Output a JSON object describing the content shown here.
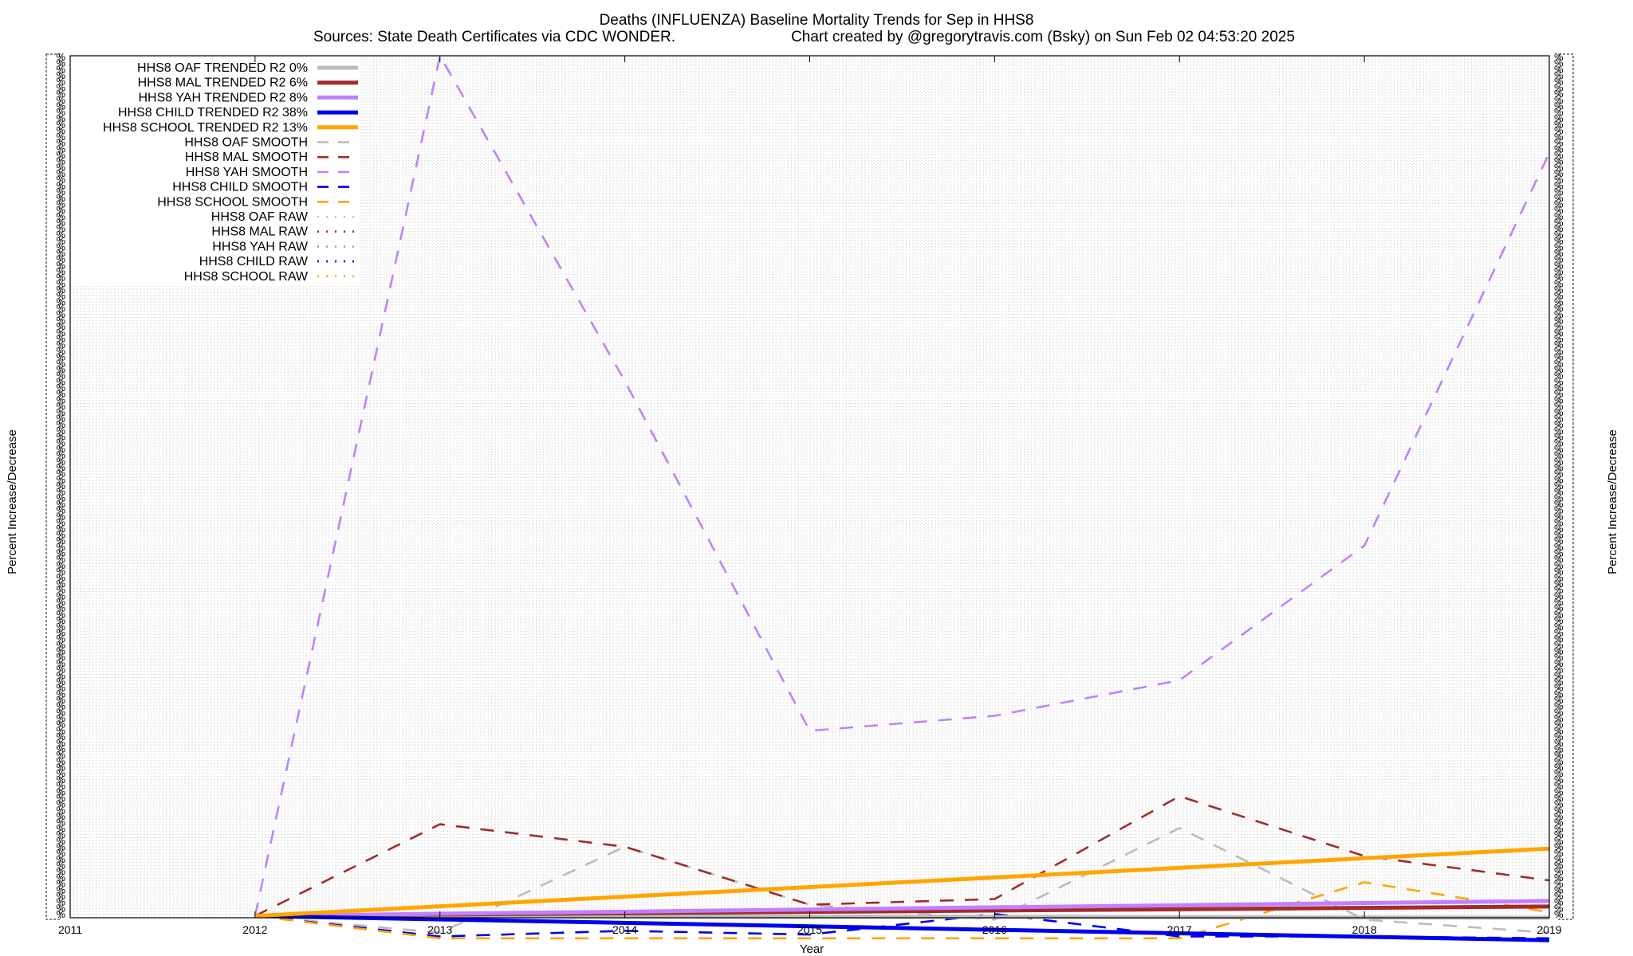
{
  "chart_data": {
    "type": "line",
    "title": "Deaths (INFLUENZA)  Baseline Mortality Trends for Sep in HHS8",
    "subtitle_source": "Sources: State Death Certificates via CDC WONDER.",
    "subtitle_credit": "Chart created by @gregorytravis.com (Bsky) on Sun Feb 02 04:53:20 2025",
    "xlabel": "Year",
    "ylabel": "Percent Increase/Decrease",
    "xlim": [
      2011,
      2019
    ],
    "ylim": [
      -5,
      2300
    ],
    "x_ticks": [
      "2011",
      "2012",
      "2013",
      "2014",
      "2015",
      "2016",
      "2017",
      "2018",
      "2019"
    ],
    "y_tick_label": "%",
    "grid": true,
    "legend_position": "top-left",
    "series": [
      {
        "name": "HHS8 OAF TRENDED R2   0%",
        "style": "solid",
        "color": "#bbbbbb",
        "x": [
          2012,
          2019
        ],
        "values": [
          0,
          -5
        ]
      },
      {
        "name": "HHS8 MAL TRENDED R2  6%",
        "style": "solid",
        "color": "#a52a2a",
        "x": [
          2012,
          2019
        ],
        "values": [
          0,
          25
        ]
      },
      {
        "name": "HHS8 YAH TRENDED R2  8%",
        "style": "solid",
        "color": "#c080ff",
        "x": [
          2012,
          2019
        ],
        "values": [
          0,
          40
        ]
      },
      {
        "name": "HHS8 CHILD TRENDED R2  38%",
        "style": "solid",
        "color": "#0000ee",
        "x": [
          2012,
          2019
        ],
        "values": [
          0,
          -65
        ]
      },
      {
        "name": "HHS8 SCHOOL TRENDED R2  13%",
        "style": "solid",
        "color": "#ffa500",
        "x": [
          2012,
          2019
        ],
        "values": [
          0,
          180
        ]
      },
      {
        "name": "HHS8 OAF SMOOTH",
        "style": "dashed",
        "color": "#bbbbbb",
        "x": [
          2012,
          2013,
          2014,
          2015,
          2016,
          2017,
          2018,
          2019
        ],
        "values": [
          0,
          -45,
          185,
          30,
          -10,
          235,
          -10,
          -45
        ]
      },
      {
        "name": "HHS8 MAL SMOOTH",
        "style": "dashed",
        "color": "#a52a2a",
        "x": [
          2012,
          2013,
          2014,
          2015,
          2016,
          2017,
          2018,
          2019
        ],
        "values": [
          0,
          245,
          185,
          30,
          45,
          320,
          160,
          95
        ]
      },
      {
        "name": "HHS8 YAH SMOOTH",
        "style": "dashed",
        "color": "#c080ff",
        "x": [
          2012,
          2013,
          2014,
          2015,
          2016,
          2017,
          2018,
          2019
        ],
        "values": [
          0,
          2300,
          1430,
          495,
          535,
          630,
          990,
          2040
        ]
      },
      {
        "name": "HHS8 CHILD SMOOTH",
        "style": "dashed",
        "color": "#0000ee",
        "x": [
          2012,
          2013,
          2014,
          2015,
          2016,
          2017,
          2018,
          2019
        ],
        "values": [
          0,
          -55,
          -40,
          -50,
          5,
          -55,
          -55,
          -60
        ]
      },
      {
        "name": "HHS8 SCHOOL SMOOTH",
        "style": "dashed",
        "color": "#ffa500",
        "x": [
          2012,
          2013,
          2014,
          2015,
          2016,
          2017,
          2018,
          2019
        ],
        "values": [
          0,
          -60,
          -60,
          -60,
          -60,
          -60,
          90,
          10
        ]
      },
      {
        "name": "HHS8 OAF RAW",
        "style": "dotted",
        "color": "#bbbbbb",
        "x": [],
        "values": []
      },
      {
        "name": "HHS8 MAL RAW",
        "style": "dotted",
        "color": "#a52a2a",
        "x": [],
        "values": []
      },
      {
        "name": "HHS8 YAH RAW",
        "style": "dotted",
        "color": "#c080ff",
        "x": [],
        "values": []
      },
      {
        "name": "HHS8 CHILD RAW",
        "style": "dotted",
        "color": "#0000ee",
        "x": [],
        "values": []
      },
      {
        "name": "HHS8 SCHOOL RAW",
        "style": "dotted",
        "color": "#ffa500",
        "x": [],
        "values": []
      }
    ]
  }
}
